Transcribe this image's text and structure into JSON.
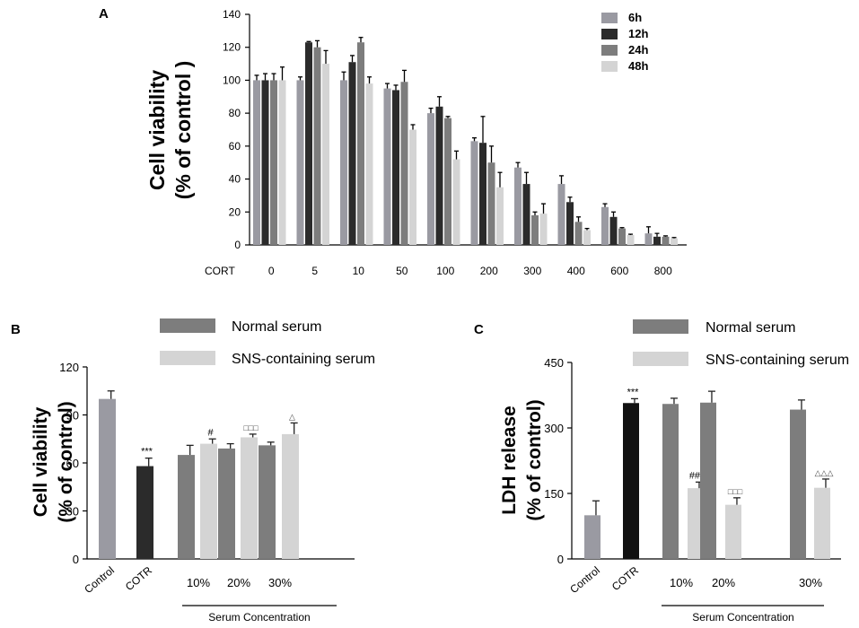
{
  "chart_data": [
    {
      "panel": "A",
      "type": "bar",
      "ylabel_line1": "Cell viability",
      "ylabel_line2": "(% of control )",
      "xlabel": "CORT",
      "ylim": [
        0,
        140
      ],
      "yticks": [
        0,
        20,
        40,
        60,
        80,
        100,
        120,
        140
      ],
      "categories": [
        "0",
        "5",
        "10",
        "50",
        "100",
        "200",
        "300",
        "400",
        "600",
        "800"
      ],
      "series": [
        {
          "name": "6h",
          "color": "#9a9aa2",
          "values": [
            100,
            100,
            100,
            95,
            80,
            63,
            47,
            37,
            23,
            7
          ],
          "errors": [
            3,
            2,
            5,
            3,
            3,
            2,
            3,
            5,
            2,
            4
          ]
        },
        {
          "name": "12h",
          "color": "#2b2b2b",
          "values": [
            100,
            123,
            111,
            94,
            84,
            62,
            37,
            26,
            17,
            5
          ],
          "errors": [
            4,
            0.5,
            4,
            3,
            6,
            16,
            7,
            3,
            3,
            2
          ]
        },
        {
          "name": "24h",
          "color": "#7d7d7d",
          "values": [
            100,
            120,
            123,
            99,
            77,
            50,
            18,
            14,
            10,
            5
          ],
          "errors": [
            4,
            4,
            3,
            7,
            1,
            10,
            2,
            3,
            0.5,
            0.5
          ]
        },
        {
          "name": "48h",
          "color": "#d4d4d4",
          "values": [
            100,
            110,
            98,
            70,
            52,
            35,
            19,
            9,
            6,
            4
          ],
          "errors": [
            8,
            8,
            4,
            3,
            5,
            9,
            6,
            1,
            0.5,
            0.5
          ]
        }
      ]
    },
    {
      "panel": "B",
      "type": "bar",
      "ylabel_line1": "Cell viability",
      "ylabel_line2": "(% of control)",
      "ylim": [
        0,
        120
      ],
      "yticks": [
        0,
        30,
        60,
        90,
        120
      ],
      "legend": [
        "Normal serum",
        "SNS-containing serum"
      ],
      "xlabel": "Serum Concentration",
      "categories": [
        "Control",
        "COTR",
        "10%",
        "20%",
        "30%"
      ],
      "bars": [
        {
          "group": "Control",
          "value": 100,
          "error": 5,
          "color": "#9a9aa2",
          "mark": ""
        },
        {
          "group": "COTR",
          "value": 58,
          "error": 5,
          "color": "#2b2b2b",
          "mark": "***"
        },
        {
          "group": "10%",
          "value": 65,
          "error": 6,
          "color": "#7d7d7d",
          "mark": ""
        },
        {
          "group": "10%",
          "value": 72,
          "error": 3,
          "color": "#d4d4d4",
          "mark": "#"
        },
        {
          "group": "20%",
          "value": 69,
          "error": 3,
          "color": "#7d7d7d",
          "mark": ""
        },
        {
          "group": "20%",
          "value": 76,
          "error": 2,
          "color": "#d4d4d4",
          "mark": "□□□"
        },
        {
          "group": "30%",
          "value": 71,
          "error": 2,
          "color": "#7d7d7d",
          "mark": ""
        },
        {
          "group": "30%",
          "value": 78,
          "error": 7,
          "color": "#d4d4d4",
          "mark": "△"
        }
      ]
    },
    {
      "panel": "C",
      "type": "bar",
      "ylabel_line1": "LDH  release",
      "ylabel_line2": "(% of control)",
      "ylim": [
        0,
        450
      ],
      "yticks": [
        0,
        150,
        300,
        450
      ],
      "legend": [
        "Normal serum",
        "SNS-containing serum"
      ],
      "xlabel": "Serum Concentration",
      "categories": [
        "Control",
        "COTR",
        "10%",
        "20%",
        "30%"
      ],
      "bars": [
        {
          "group": "Control",
          "value": 100,
          "error": 33,
          "color": "#9a9aa2",
          "mark": ""
        },
        {
          "group": "COTR",
          "value": 357,
          "error": 10,
          "color": "#111111",
          "mark": "***"
        },
        {
          "group": "10%",
          "value": 355,
          "error": 13,
          "color": "#7d7d7d",
          "mark": ""
        },
        {
          "group": "10%",
          "value": 162,
          "error": 14,
          "color": "#d4d4d4",
          "mark": "###"
        },
        {
          "group": "20%",
          "value": 358,
          "error": 26,
          "color": "#7d7d7d",
          "mark": ""
        },
        {
          "group": "20%",
          "value": 124,
          "error": 16,
          "color": "#d4d4d4",
          "mark": "□□□"
        },
        {
          "group": "30%",
          "value": 342,
          "error": 22,
          "color": "#7d7d7d",
          "mark": ""
        },
        {
          "group": "30%",
          "value": 163,
          "error": 20,
          "color": "#d4d4d4",
          "mark": "△△△"
        }
      ]
    }
  ]
}
